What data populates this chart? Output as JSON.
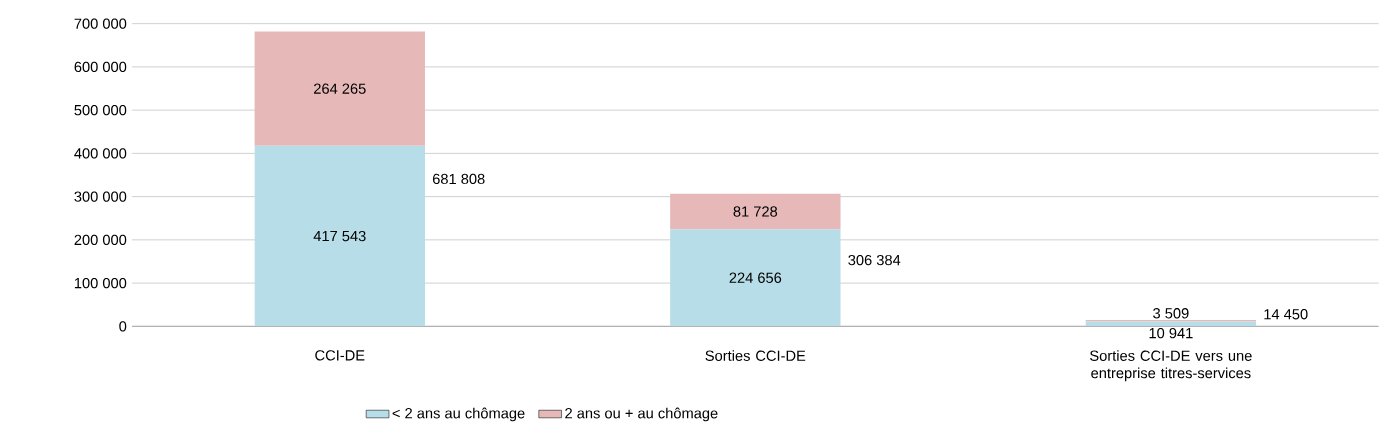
{
  "chart_data": {
    "type": "bar",
    "stacked": true,
    "categories": [
      "CCI-DE",
      "Sorties CCI-DE",
      "Sorties CCI-DE vers une entreprise titres-services"
    ],
    "series": [
      {
        "name": "< 2 ans au chômage",
        "color": "#b7dde8",
        "values": [
          417543,
          224656,
          10941
        ],
        "value_labels": [
          "417 543",
          "224 656",
          "10 941"
        ]
      },
      {
        "name": "2 ans ou + au chômage",
        "color": "#e6b9b8",
        "values": [
          264265,
          81728,
          3509
        ],
        "value_labels": [
          "264 265",
          "81 728",
          "3 509"
        ]
      }
    ],
    "totals": [
      "681 808",
      "306 384",
      "14 450"
    ],
    "ylim": [
      0,
      700000
    ],
    "yticks": [
      {
        "value": 0,
        "label": "0"
      },
      {
        "value": 100000,
        "label": "100 000"
      },
      {
        "value": 200000,
        "label": "200 000"
      },
      {
        "value": 300000,
        "label": "300 000"
      },
      {
        "value": 400000,
        "label": "400 000"
      },
      {
        "value": 500000,
        "label": "500 000"
      },
      {
        "value": 600000,
        "label": "600 000"
      },
      {
        "value": 700000,
        "label": "700 000"
      }
    ],
    "grid": "y",
    "legend": "bottom"
  }
}
